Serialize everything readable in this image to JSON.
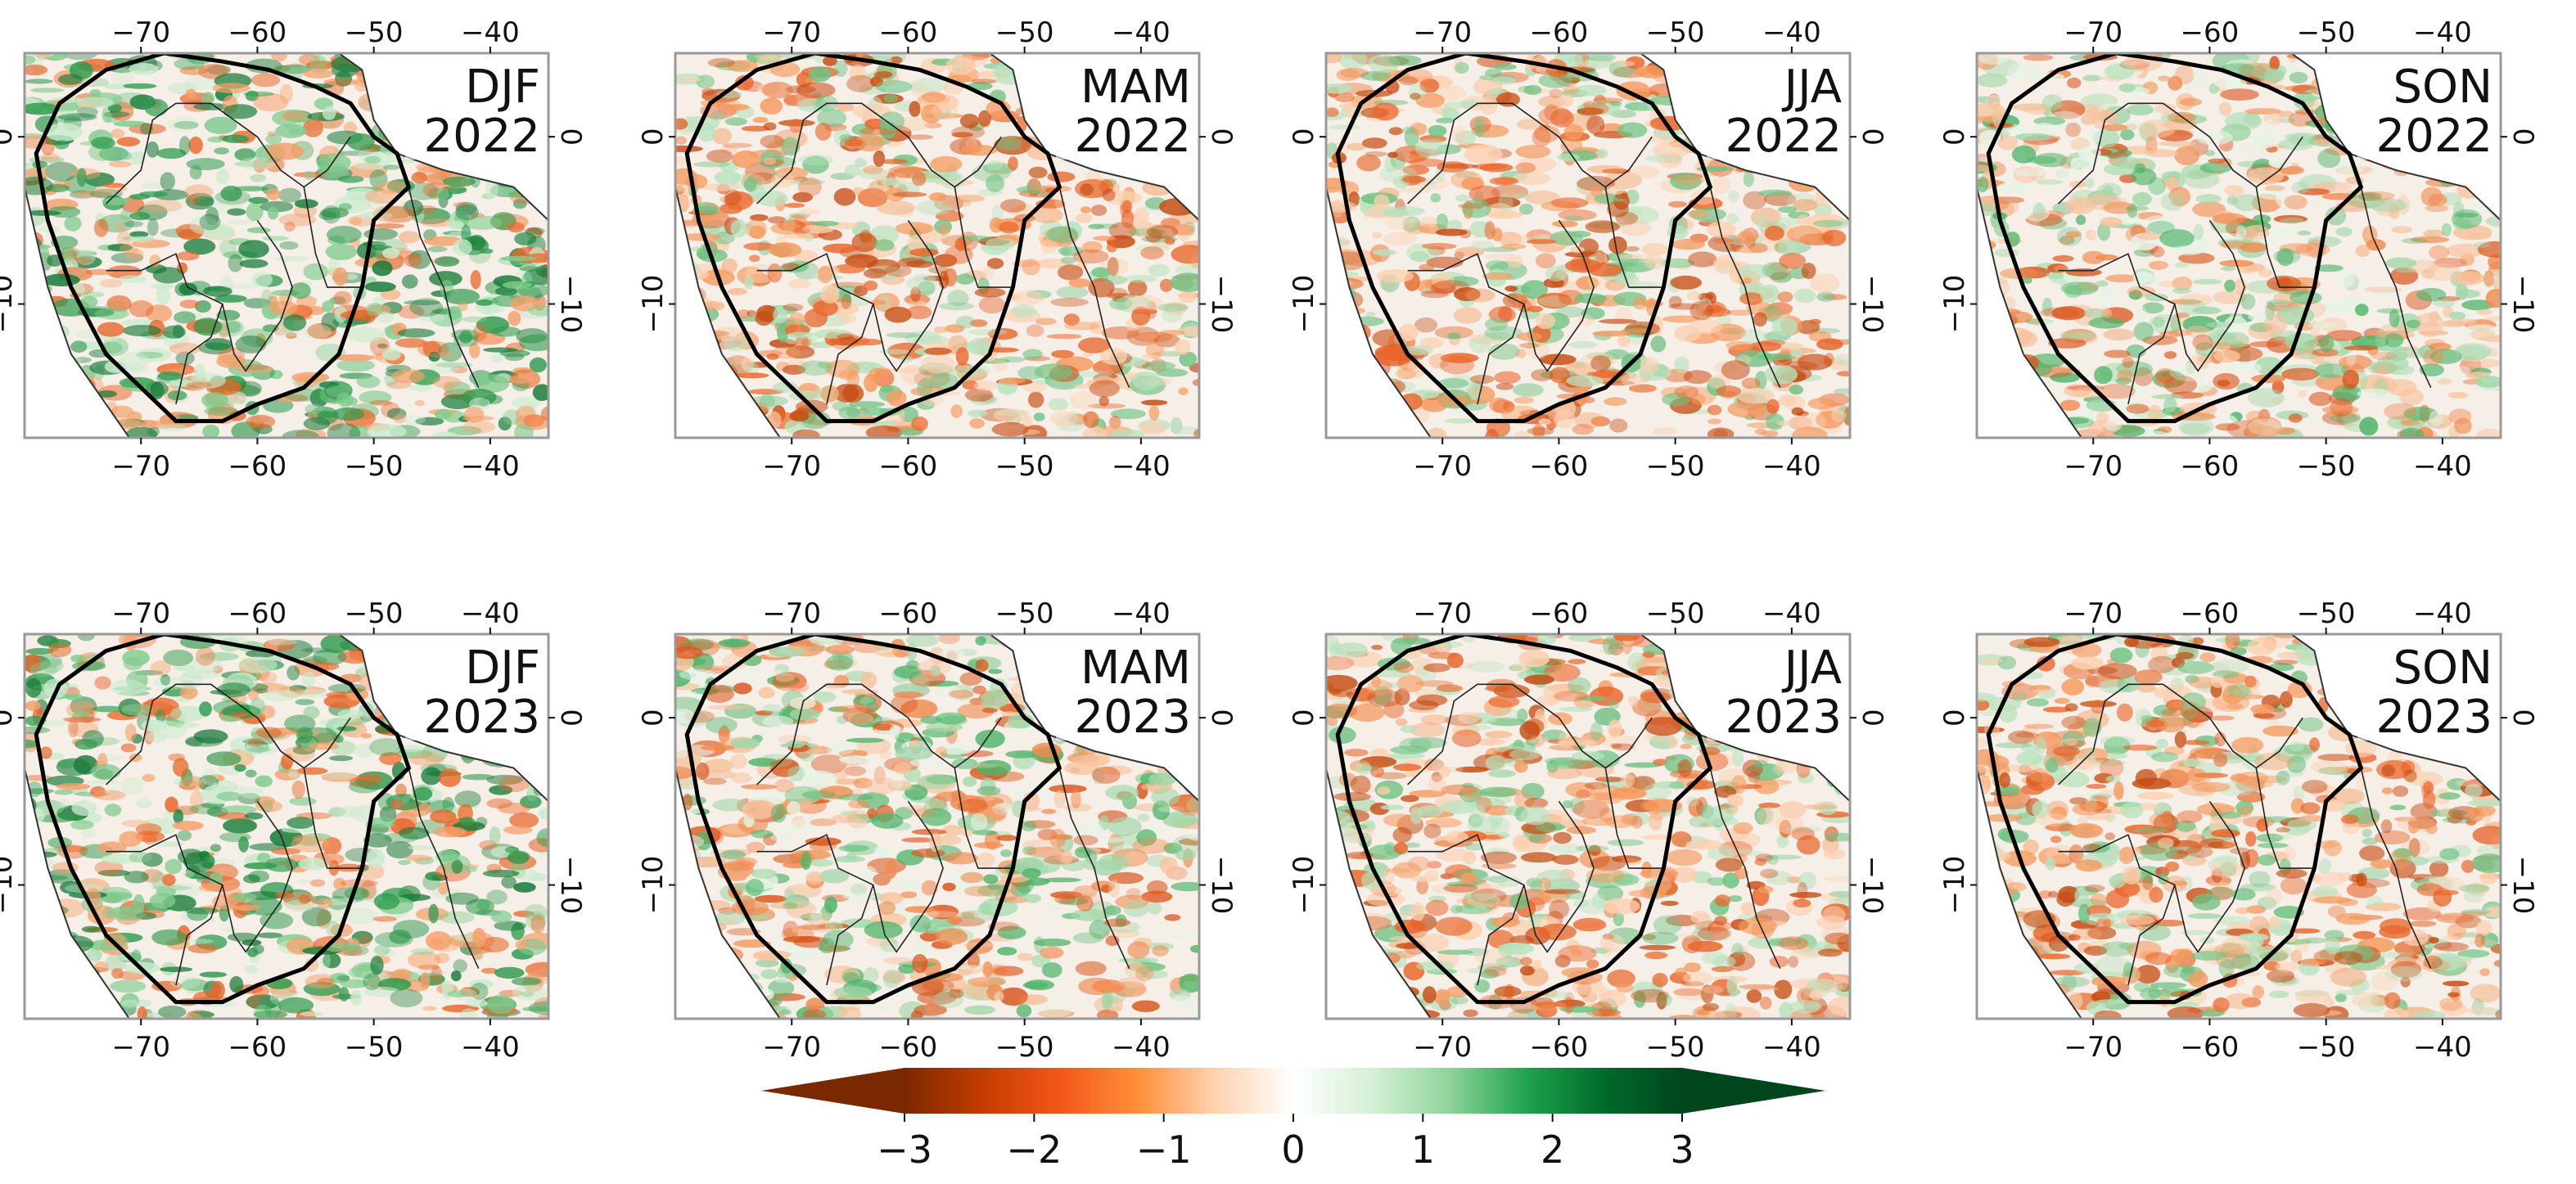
{
  "figure": {
    "panels": [
      {
        "season": "DJF",
        "year": "2022",
        "tint": "green"
      },
      {
        "season": "MAM",
        "year": "2022",
        "tint": "orange"
      },
      {
        "season": "JJA",
        "year": "2022",
        "tint": "orange"
      },
      {
        "season": "SON",
        "year": "2022",
        "tint": "mixed"
      },
      {
        "season": "DJF",
        "year": "2023",
        "tint": "green"
      },
      {
        "season": "MAM",
        "year": "2023",
        "tint": "mixed"
      },
      {
        "season": "JJA",
        "year": "2023",
        "tint": "orange"
      },
      {
        "season": "SON",
        "year": "2023",
        "tint": "orange"
      }
    ],
    "lon_ticks": [
      "−70",
      "−60",
      "−50",
      "−40"
    ],
    "lon_values": [
      -70,
      -60,
      -50,
      -40
    ],
    "lat_ticks": [
      "0",
      "−10"
    ],
    "lat_values": [
      0,
      -10
    ],
    "lon_range": [
      -80,
      -35
    ],
    "lat_range": [
      -18,
      5
    ]
  },
  "colorbar": {
    "ticks": [
      "−3",
      "−2",
      "−1",
      "0",
      "1",
      "2",
      "3"
    ],
    "values": [
      -3,
      -2,
      -1,
      0,
      1,
      2,
      3
    ],
    "range": [
      -3,
      3
    ],
    "colors": [
      "#7a2800",
      "#c43c00",
      "#f4561a",
      "#ff8f3a",
      "#ffd3b0",
      "#ffffff",
      "#d6f0d6",
      "#8fd49b",
      "#1fa24e",
      "#006a2a",
      "#00451c"
    ]
  }
}
